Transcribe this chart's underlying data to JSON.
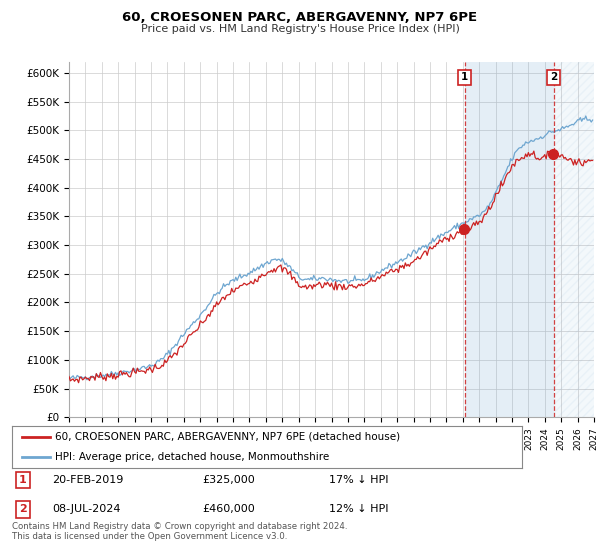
{
  "title": "60, CROESONEN PARC, ABERGAVENNY, NP7 6PE",
  "subtitle": "Price paid vs. HM Land Registry's House Price Index (HPI)",
  "ylabel_ticks": [
    "£0",
    "£50K",
    "£100K",
    "£150K",
    "£200K",
    "£250K",
    "£300K",
    "£350K",
    "£400K",
    "£450K",
    "£500K",
    "£550K",
    "£600K"
  ],
  "ylim": [
    0,
    620000
  ],
  "ytick_vals": [
    0,
    50000,
    100000,
    150000,
    200000,
    250000,
    300000,
    350000,
    400000,
    450000,
    500000,
    550000,
    600000
  ],
  "hpi_color": "#6ea6d0",
  "price_color": "#cc2222",
  "shade_color": "#d6e8f5",
  "marker1_date": 2019.12,
  "marker1_price": 325000,
  "marker2_date": 2024.54,
  "marker2_price": 460000,
  "legend_label_price": "60, CROESONEN PARC, ABERGAVENNY, NP7 6PE (detached house)",
  "legend_label_hpi": "HPI: Average price, detached house, Monmouthshire",
  "note1_date": "20-FEB-2019",
  "note1_price": "£325,000",
  "note1_hpi": "17% ↓ HPI",
  "note2_date": "08-JUL-2024",
  "note2_price": "£460,000",
  "note2_hpi": "12% ↓ HPI",
  "footer": "Contains HM Land Registry data © Crown copyright and database right 2024.\nThis data is licensed under the Open Government Licence v3.0.",
  "background_color": "#ffffff",
  "grid_color": "#cccccc",
  "xmin": 1995,
  "xmax": 2027
}
